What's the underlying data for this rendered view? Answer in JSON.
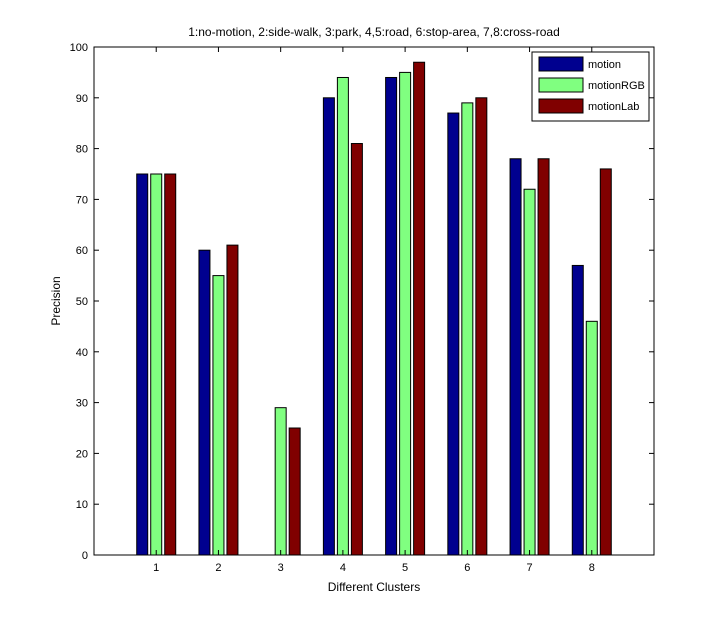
{
  "chart_data": {
    "type": "bar",
    "title": "1:no-motion, 2:side-walk, 3:park, 4,5:road, 6:stop-area, 7,8:cross-road",
    "xlabel": "Different Clusters",
    "ylabel": "Precision",
    "categories": [
      "1",
      "2",
      "3",
      "4",
      "5",
      "6",
      "7",
      "8"
    ],
    "ylim": [
      0,
      100
    ],
    "yticks": [
      "0",
      "10",
      "20",
      "30",
      "40",
      "50",
      "60",
      "70",
      "80",
      "90",
      "100"
    ],
    "grid": false,
    "legend_position": "top-right",
    "series": [
      {
        "name": "motion",
        "color": "#00008f",
        "values": [
          75,
          60,
          0,
          90,
          94,
          87,
          78,
          57
        ]
      },
      {
        "name": "motionRGB",
        "color": "#80ff80",
        "values": [
          75,
          55,
          29,
          94,
          95,
          89,
          72,
          46
        ]
      },
      {
        "name": "motionLab",
        "color": "#800000",
        "values": [
          75,
          61,
          25,
          81,
          97,
          90,
          78,
          76
        ]
      }
    ]
  }
}
